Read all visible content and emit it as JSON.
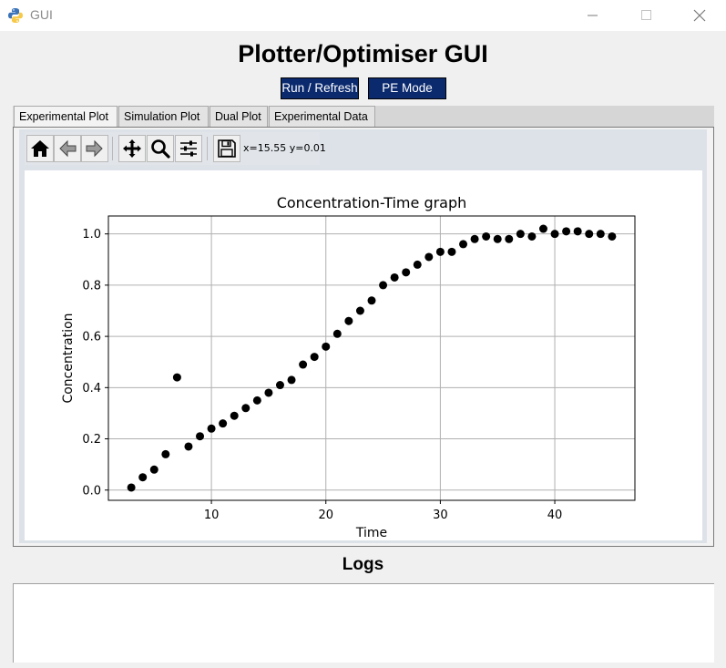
{
  "window": {
    "title": "GUI",
    "icon": "python-logo-icon",
    "controls": [
      "minimize-icon",
      "maximize-icon",
      "close-icon"
    ]
  },
  "header": {
    "title": "Plotter/Optimiser GUI",
    "run_button": "Run / Refresh",
    "pe_button": "PE Mode",
    "button_color": "#0b2a6e"
  },
  "tabs": [
    {
      "label": "Experimental Plot",
      "active": true
    },
    {
      "label": "Simulation Plot",
      "active": false
    },
    {
      "label": "Dual Plot",
      "active": false
    },
    {
      "label": "Experimental Data",
      "active": false
    }
  ],
  "toolbar": {
    "buttons": [
      "home-icon",
      "back-arrow-icon",
      "forward-arrow-icon",
      "pan-icon",
      "zoom-icon",
      "configure-subplots-icon",
      "save-icon"
    ],
    "coords": "x=15.55 y=0.01"
  },
  "chart_data": {
    "type": "scatter",
    "title": "Concentration-Time graph",
    "xlabel": "Time",
    "ylabel": "Concentration",
    "xlim": [
      1,
      47
    ],
    "ylim": [
      -0.04,
      1.07
    ],
    "xticks": [
      10,
      20,
      30,
      40
    ],
    "yticks": [
      0.0,
      0.2,
      0.4,
      0.6,
      0.8,
      1.0
    ],
    "xtick_labels": [
      "10",
      "20",
      "30",
      "40"
    ],
    "ytick_labels": [
      "0.0",
      "0.2",
      "0.4",
      "0.6",
      "0.8",
      "1.0"
    ],
    "grid": true,
    "marker_color": "#000000",
    "series": [
      {
        "x": [
          3,
          4,
          5,
          6,
          7,
          8,
          9,
          10,
          11,
          12,
          13,
          14,
          15,
          16,
          17,
          18,
          19,
          20,
          21,
          22,
          23,
          24,
          25,
          26,
          27,
          28,
          29,
          30,
          31,
          32,
          33,
          34,
          35,
          36,
          37,
          38,
          39,
          40,
          41,
          42,
          43,
          44,
          45
        ],
        "y": [
          0.01,
          0.05,
          0.08,
          0.14,
          0.44,
          0.17,
          0.21,
          0.24,
          0.26,
          0.29,
          0.32,
          0.35,
          0.38,
          0.41,
          0.43,
          0.49,
          0.52,
          0.56,
          0.61,
          0.66,
          0.7,
          0.74,
          0.8,
          0.83,
          0.85,
          0.88,
          0.91,
          0.93,
          0.93,
          0.96,
          0.98,
          0.99,
          0.98,
          0.98,
          1.0,
          0.99,
          1.02,
          1.0,
          1.01,
          1.01,
          1.0,
          1.0,
          0.99
        ]
      }
    ]
  },
  "logs": {
    "title": "Logs",
    "content": ""
  }
}
